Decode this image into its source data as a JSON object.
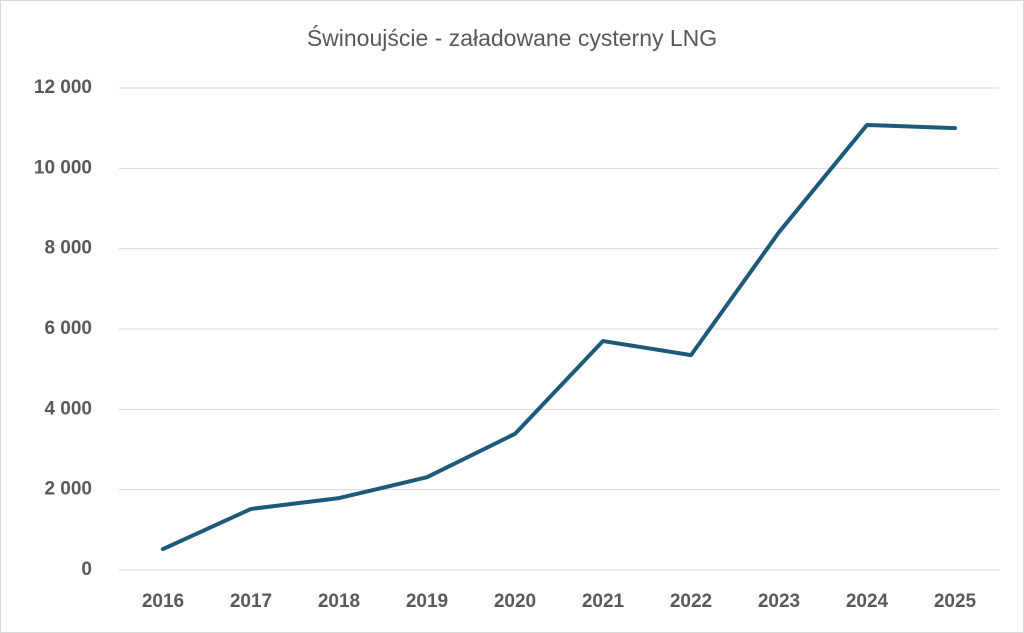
{
  "chart_data": {
    "type": "line",
    "title": "Świnoujście - załadowane cysterny LNG",
    "categories": [
      "2016",
      "2017",
      "2018",
      "2019",
      "2020",
      "2021",
      "2022",
      "2023",
      "2024",
      "2025"
    ],
    "series": [
      {
        "color": "#1d5a7a",
        "values": [
          520,
          1520,
          1790,
          2310,
          3390,
          5700,
          5350,
          8410,
          11080,
          11000
        ]
      }
    ],
    "ylim": [
      0,
      12000
    ],
    "yticks": [
      0,
      {
        "value": 2000,
        "label": "2 000"
      },
      {
        "value": 4000,
        "label": "4 000"
      },
      {
        "value": 6000,
        "label": "6 000"
      },
      {
        "value": 8000,
        "label": "8 000"
      },
      {
        "value": 10000,
        "label": "10 000"
      },
      {
        "value": 12000,
        "label": "12 000"
      }
    ],
    "grid": true
  }
}
